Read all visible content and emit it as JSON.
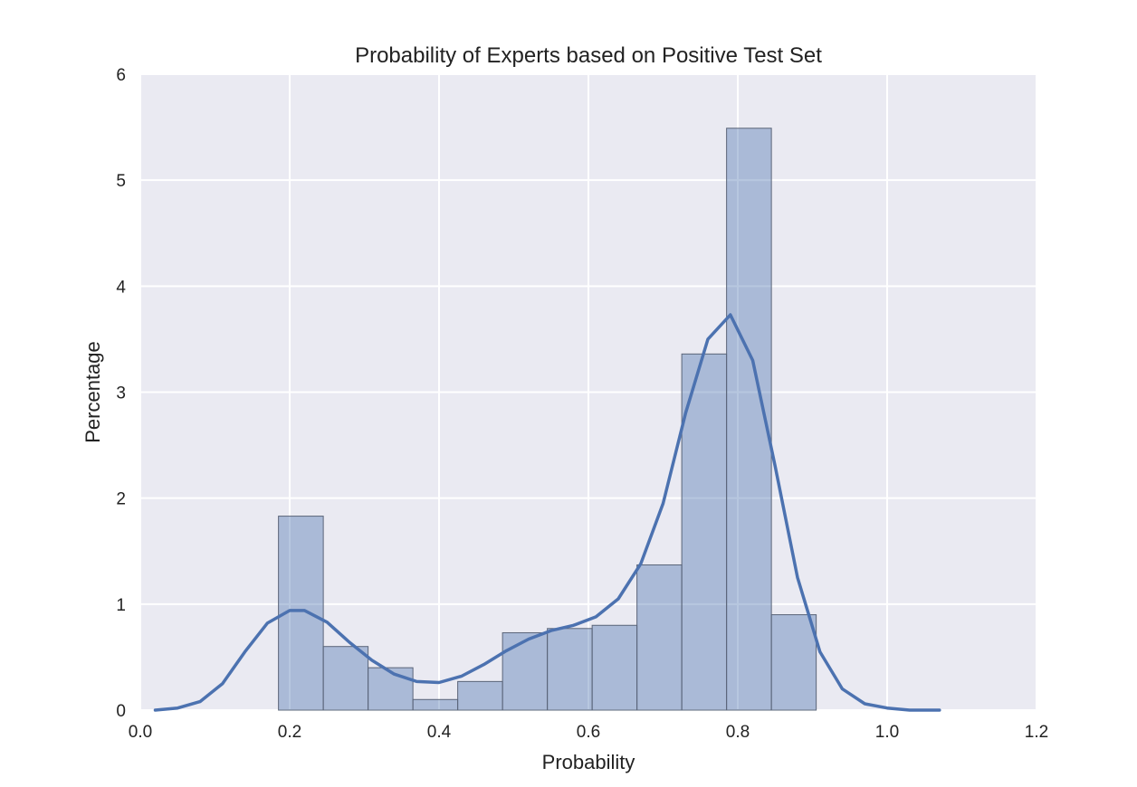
{
  "chart_data": {
    "type": "bar",
    "title": "Probability of Experts based on Positive Test Set",
    "xlabel": "Probability",
    "ylabel": "Percentage",
    "xlim": [
      0.0,
      1.2
    ],
    "ylim": [
      0,
      6
    ],
    "xticks": [
      "0.0",
      "0.2",
      "0.4",
      "0.6",
      "0.8",
      "1.0",
      "1.2"
    ],
    "yticks": [
      "0",
      "1",
      "2",
      "3",
      "4",
      "5",
      "6"
    ],
    "grid": true,
    "bin_edges": [
      0.185,
      0.245,
      0.305,
      0.365,
      0.425,
      0.485,
      0.545,
      0.605,
      0.665,
      0.725,
      0.785,
      0.845,
      0.905
    ],
    "values": [
      1.83,
      0.6,
      0.4,
      0.1,
      0.27,
      0.73,
      0.77,
      0.8,
      1.37,
      3.36,
      5.49,
      0.9
    ],
    "kde": {
      "x": [
        0.02,
        0.05,
        0.08,
        0.11,
        0.14,
        0.17,
        0.2,
        0.22,
        0.25,
        0.28,
        0.31,
        0.34,
        0.37,
        0.4,
        0.43,
        0.46,
        0.49,
        0.52,
        0.55,
        0.58,
        0.61,
        0.64,
        0.67,
        0.7,
        0.73,
        0.76,
        0.79,
        0.82,
        0.85,
        0.88,
        0.91,
        0.94,
        0.97,
        1.0,
        1.03,
        1.07
      ],
      "y": [
        0.0,
        0.02,
        0.08,
        0.25,
        0.55,
        0.82,
        0.94,
        0.94,
        0.83,
        0.64,
        0.47,
        0.34,
        0.27,
        0.26,
        0.32,
        0.43,
        0.56,
        0.67,
        0.75,
        0.8,
        0.88,
        1.05,
        1.38,
        1.95,
        2.8,
        3.5,
        3.73,
        3.3,
        2.3,
        1.25,
        0.55,
        0.2,
        0.06,
        0.02,
        0.0,
        0.0
      ]
    },
    "colors": {
      "plot_bg": "#eaeaf2",
      "grid": "#ffffff",
      "bar_fill": "#4c72b0",
      "bar_edge": "#5a6478",
      "kde_line": "#4c72b0"
    }
  }
}
